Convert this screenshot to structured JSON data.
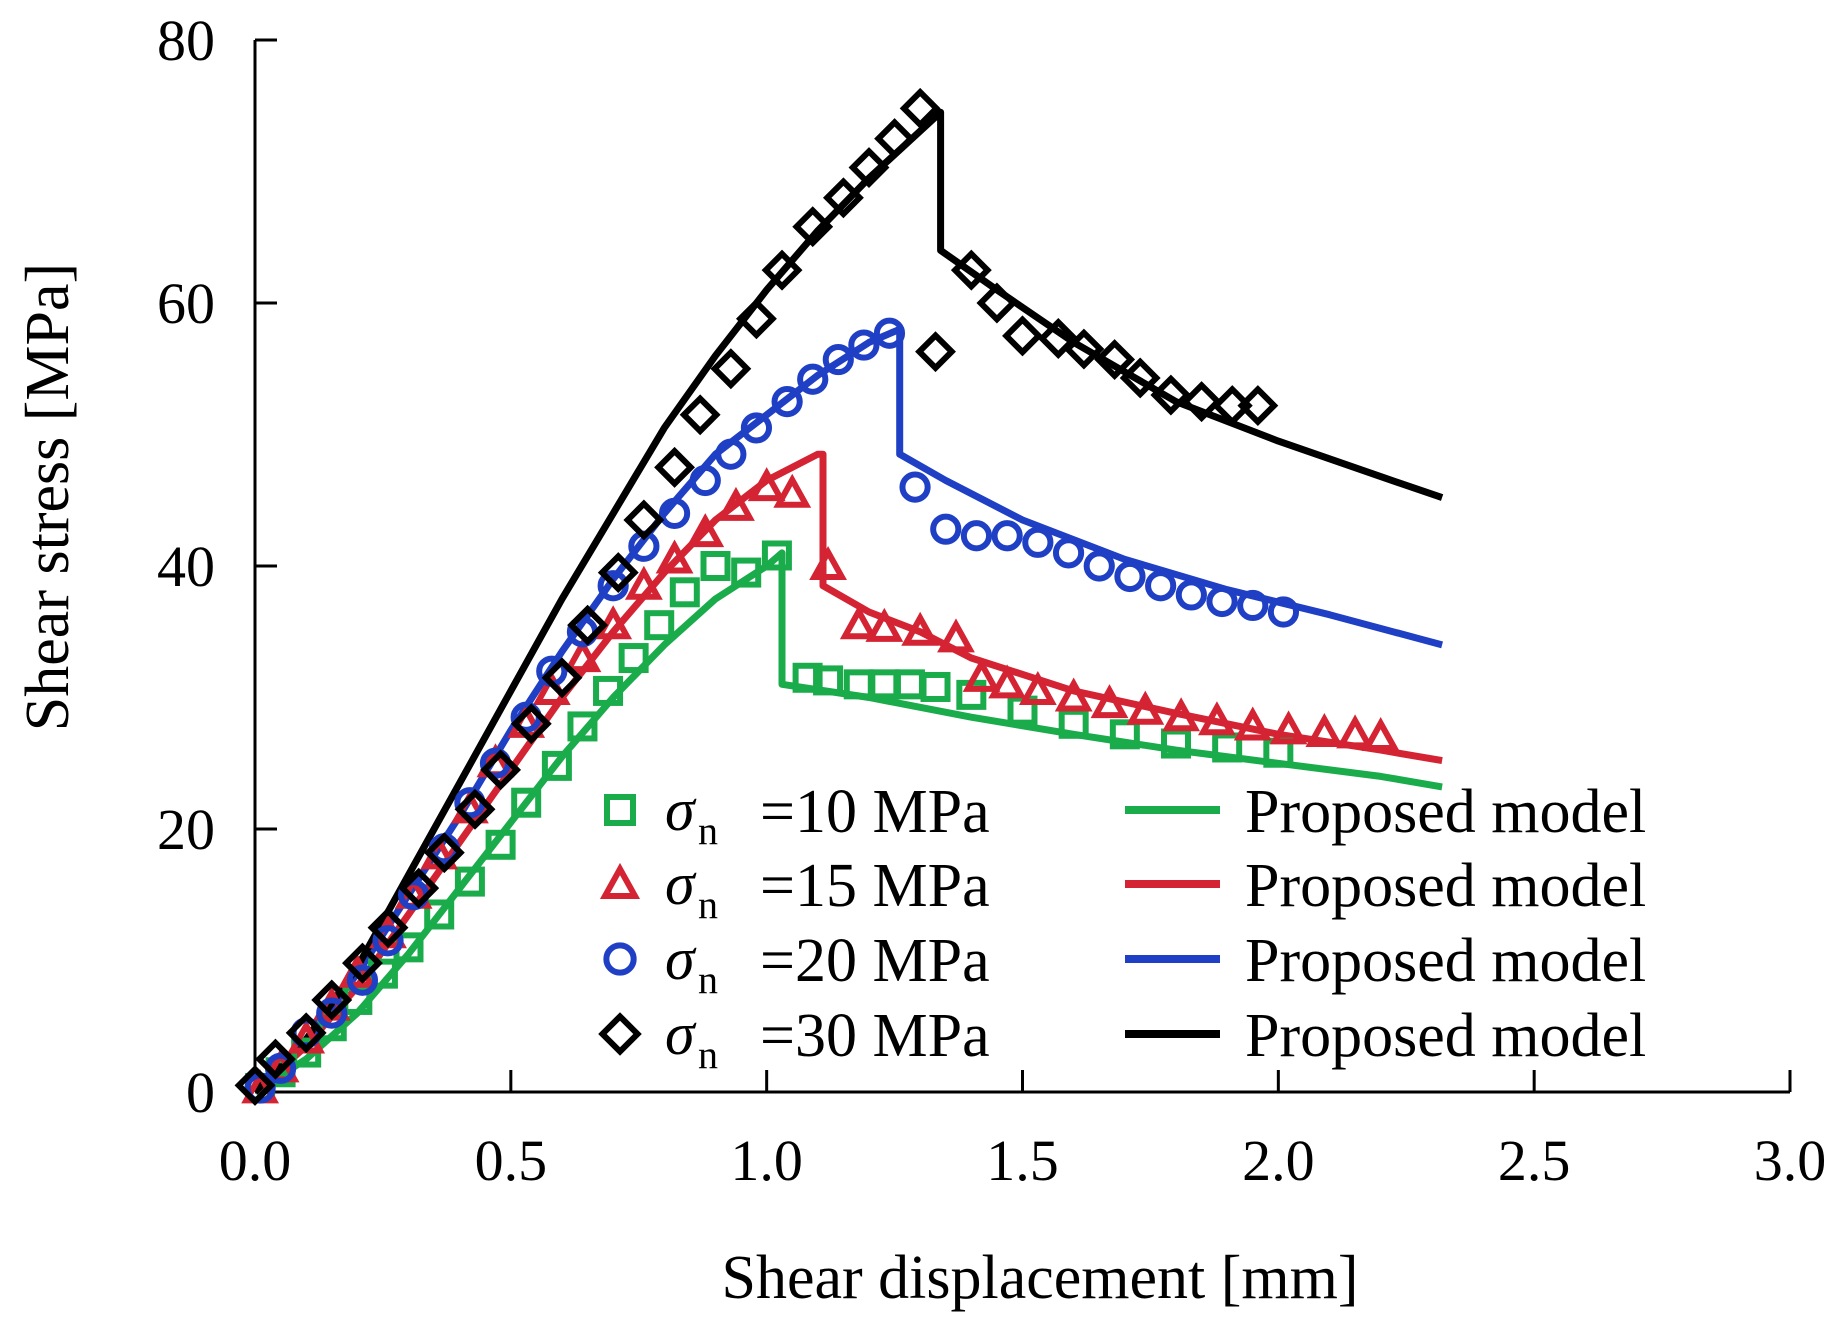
{
  "chart_data": {
    "type": "scatter",
    "xlabel": "Shear displacement [mm]",
    "ylabel": "Shear stress [MPa]",
    "xlim": [
      0,
      3.0
    ],
    "ylim": [
      0,
      80
    ],
    "xticks": [
      "0.0",
      "0.5",
      "1.0",
      "1.5",
      "2.0",
      "2.5",
      "3.0"
    ],
    "yticks": [
      "0",
      "20",
      "40",
      "60",
      "80"
    ],
    "grid": false,
    "legend_position": "bottom-right",
    "colors": {
      "green": "#1aab4b",
      "red": "#d42332",
      "blue": "#1f3fc4",
      "black": "#000000"
    },
    "series": [
      {
        "name": "σn =10 MPa",
        "sigma": "σ",
        "sub": "n",
        "value_label": "=10 MPa",
        "color": "#1aab4b",
        "marker": "square",
        "points": [
          [
            0.01,
            0.3
          ],
          [
            0.05,
            1.5
          ],
          [
            0.1,
            3
          ],
          [
            0.15,
            5
          ],
          [
            0.2,
            7
          ],
          [
            0.25,
            9
          ],
          [
            0.3,
            11
          ],
          [
            0.36,
            13.5
          ],
          [
            0.42,
            16
          ],
          [
            0.48,
            18.8
          ],
          [
            0.53,
            22
          ],
          [
            0.59,
            24.8
          ],
          [
            0.64,
            27.8
          ],
          [
            0.69,
            30.5
          ],
          [
            0.74,
            33
          ],
          [
            0.79,
            35.5
          ],
          [
            0.84,
            38
          ],
          [
            0.9,
            40
          ],
          [
            0.96,
            39.5
          ],
          [
            1.02,
            40.8
          ],
          [
            1.08,
            31.5
          ],
          [
            1.12,
            31.3
          ],
          [
            1.18,
            31
          ],
          [
            1.23,
            31
          ],
          [
            1.28,
            31
          ],
          [
            1.33,
            30.8
          ],
          [
            1.4,
            30.2
          ],
          [
            1.5,
            29
          ],
          [
            1.6,
            28
          ],
          [
            1.7,
            27.2
          ],
          [
            1.8,
            26.5
          ],
          [
            1.9,
            26.2
          ],
          [
            2.0,
            25.8
          ]
        ]
      },
      {
        "name": "σn =15 MPa",
        "sigma": "σ",
        "sub": "n",
        "value_label": "=15 MPa",
        "color": "#d42332",
        "marker": "triangle",
        "points": [
          [
            0.01,
            0.2
          ],
          [
            0.05,
            1.8
          ],
          [
            0.1,
            4
          ],
          [
            0.15,
            6.5
          ],
          [
            0.2,
            9
          ],
          [
            0.26,
            12
          ],
          [
            0.31,
            15
          ],
          [
            0.36,
            18
          ],
          [
            0.42,
            21.5
          ],
          [
            0.47,
            25
          ],
          [
            0.53,
            28
          ],
          [
            0.58,
            30.5
          ],
          [
            0.64,
            33
          ],
          [
            0.7,
            35.5
          ],
          [
            0.76,
            38.5
          ],
          [
            0.82,
            40.5
          ],
          [
            0.88,
            42.5
          ],
          [
            0.94,
            44.5
          ],
          [
            1.0,
            46
          ],
          [
            1.05,
            45.5
          ],
          [
            1.12,
            40
          ],
          [
            1.18,
            35.5
          ],
          [
            1.23,
            35.3
          ],
          [
            1.3,
            35
          ],
          [
            1.37,
            34.5
          ],
          [
            1.42,
            31.5
          ],
          [
            1.47,
            31
          ],
          [
            1.53,
            30.5
          ],
          [
            1.6,
            30
          ],
          [
            1.67,
            29.5
          ],
          [
            1.74,
            29
          ],
          [
            1.81,
            28.5
          ],
          [
            1.88,
            28.2
          ],
          [
            1.95,
            27.8
          ],
          [
            2.02,
            27.5
          ],
          [
            2.09,
            27.3
          ],
          [
            2.15,
            27.2
          ],
          [
            2.2,
            27
          ]
        ]
      },
      {
        "name": "σn =20 MPa",
        "sigma": "σ",
        "sub": "n",
        "value_label": "=20 MPa",
        "color": "#1f3fc4",
        "marker": "circle",
        "points": [
          [
            0.01,
            0.3
          ],
          [
            0.05,
            1.8
          ],
          [
            0.1,
            4.5
          ],
          [
            0.15,
            6
          ],
          [
            0.21,
            8.5
          ],
          [
            0.26,
            11.5
          ],
          [
            0.31,
            15
          ],
          [
            0.37,
            18.5
          ],
          [
            0.42,
            22
          ],
          [
            0.47,
            25
          ],
          [
            0.53,
            28.5
          ],
          [
            0.58,
            32
          ],
          [
            0.64,
            35
          ],
          [
            0.7,
            38.5
          ],
          [
            0.76,
            41.5
          ],
          [
            0.82,
            44
          ],
          [
            0.88,
            46.5
          ],
          [
            0.93,
            48.5
          ],
          [
            0.98,
            50.5
          ],
          [
            1.04,
            52.5
          ],
          [
            1.09,
            54.2
          ],
          [
            1.14,
            55.7
          ],
          [
            1.19,
            56.8
          ],
          [
            1.24,
            57.7
          ],
          [
            1.29,
            46
          ],
          [
            1.35,
            42.8
          ],
          [
            1.41,
            42.3
          ],
          [
            1.47,
            42.3
          ],
          [
            1.53,
            41.8
          ],
          [
            1.59,
            41
          ],
          [
            1.65,
            40
          ],
          [
            1.71,
            39.2
          ],
          [
            1.77,
            38.5
          ],
          [
            1.83,
            37.8
          ],
          [
            1.89,
            37.3
          ],
          [
            1.95,
            37
          ],
          [
            2.01,
            36.5
          ]
        ]
      },
      {
        "name": "σn =30 MPa",
        "sigma": "σ",
        "sub": "n",
        "value_label": "=30 MPa",
        "color": "#000000",
        "marker": "diamond",
        "points": [
          [
            0.0,
            0.5
          ],
          [
            0.04,
            2.5
          ],
          [
            0.1,
            4.5
          ],
          [
            0.15,
            7
          ],
          [
            0.21,
            9.8
          ],
          [
            0.26,
            12.5
          ],
          [
            0.32,
            15.5
          ],
          [
            0.37,
            18.2
          ],
          [
            0.43,
            21.5
          ],
          [
            0.48,
            24.5
          ],
          [
            0.54,
            28
          ],
          [
            0.6,
            31.5
          ],
          [
            0.65,
            35.5
          ],
          [
            0.71,
            39.5
          ],
          [
            0.76,
            43.5
          ],
          [
            0.82,
            47.5
          ],
          [
            0.87,
            51.5
          ],
          [
            0.93,
            55
          ],
          [
            0.98,
            58.8
          ],
          [
            1.03,
            62.5
          ],
          [
            1.09,
            65.8
          ],
          [
            1.15,
            68
          ],
          [
            1.2,
            70.3
          ],
          [
            1.25,
            72.5
          ],
          [
            1.3,
            74.8
          ],
          [
            1.33,
            56.3
          ],
          [
            1.4,
            62.5
          ],
          [
            1.45,
            60
          ],
          [
            1.5,
            57.5
          ],
          [
            1.57,
            57.3
          ],
          [
            1.62,
            56.5
          ],
          [
            1.68,
            55.7
          ],
          [
            1.73,
            54.3
          ],
          [
            1.79,
            53
          ],
          [
            1.85,
            52.5
          ],
          [
            1.91,
            52.2
          ],
          [
            1.96,
            52.2
          ]
        ]
      }
    ],
    "model_lines": [
      {
        "name": "Proposed model",
        "label": "Proposed model",
        "color": "#1aab4b",
        "points": [
          [
            0,
            0
          ],
          [
            0.1,
            2.5
          ],
          [
            0.2,
            6
          ],
          [
            0.3,
            10.5
          ],
          [
            0.4,
            15.5
          ],
          [
            0.5,
            20.5
          ],
          [
            0.6,
            25.5
          ],
          [
            0.7,
            30
          ],
          [
            0.8,
            34
          ],
          [
            0.9,
            37.5
          ],
          [
            1.0,
            40
          ],
          [
            1.03,
            41
          ],
          [
            1.03,
            31
          ],
          [
            1.2,
            30
          ],
          [
            1.4,
            28.5
          ],
          [
            1.6,
            27.2
          ],
          [
            1.8,
            26
          ],
          [
            2.0,
            25
          ],
          [
            2.2,
            24
          ],
          [
            2.32,
            23.2
          ]
        ]
      },
      {
        "name": "Proposed model",
        "label": "Proposed model",
        "color": "#d42332",
        "points": [
          [
            0,
            0
          ],
          [
            0.1,
            3.5
          ],
          [
            0.2,
            8
          ],
          [
            0.3,
            13.5
          ],
          [
            0.4,
            19
          ],
          [
            0.5,
            24.5
          ],
          [
            0.6,
            30
          ],
          [
            0.7,
            35
          ],
          [
            0.8,
            39.5
          ],
          [
            0.9,
            43.5
          ],
          [
            1.0,
            46.5
          ],
          [
            1.1,
            48.5
          ],
          [
            1.11,
            48.5
          ],
          [
            1.11,
            38.5
          ],
          [
            1.2,
            36.5
          ],
          [
            1.3,
            35
          ],
          [
            1.4,
            33
          ],
          [
            1.6,
            30.5
          ],
          [
            1.8,
            28.8
          ],
          [
            2.0,
            27.2
          ],
          [
            2.2,
            26
          ],
          [
            2.32,
            25.2
          ]
        ]
      },
      {
        "name": "Proposed model",
        "label": "Proposed model",
        "color": "#1f3fc4",
        "points": [
          [
            0,
            0
          ],
          [
            0.1,
            4
          ],
          [
            0.2,
            9
          ],
          [
            0.3,
            15
          ],
          [
            0.4,
            21
          ],
          [
            0.5,
            27.5
          ],
          [
            0.6,
            33.5
          ],
          [
            0.7,
            39
          ],
          [
            0.8,
            44
          ],
          [
            0.9,
            48.5
          ],
          [
            1.0,
            51.5
          ],
          [
            1.1,
            54.5
          ],
          [
            1.2,
            57
          ],
          [
            1.26,
            58
          ],
          [
            1.26,
            48.5
          ],
          [
            1.35,
            46.5
          ],
          [
            1.5,
            43.5
          ],
          [
            1.7,
            40.5
          ],
          [
            1.9,
            38.2
          ],
          [
            2.1,
            36.3
          ],
          [
            2.32,
            34
          ]
        ]
      },
      {
        "name": "Proposed model",
        "label": "Proposed model",
        "color": "#000000",
        "points": [
          [
            0,
            0
          ],
          [
            0.1,
            4
          ],
          [
            0.2,
            9.5
          ],
          [
            0.3,
            16.5
          ],
          [
            0.4,
            23.5
          ],
          [
            0.5,
            30.5
          ],
          [
            0.6,
            37.5
          ],
          [
            0.7,
            44
          ],
          [
            0.8,
            50.5
          ],
          [
            0.9,
            56
          ],
          [
            1.0,
            61
          ],
          [
            1.1,
            65.5
          ],
          [
            1.2,
            69.5
          ],
          [
            1.34,
            74.5
          ],
          [
            1.34,
            64
          ],
          [
            1.45,
            61
          ],
          [
            1.6,
            57
          ],
          [
            1.8,
            52.5
          ],
          [
            2.0,
            49.5
          ],
          [
            2.2,
            46.8
          ],
          [
            2.32,
            45.2
          ]
        ]
      }
    ]
  }
}
